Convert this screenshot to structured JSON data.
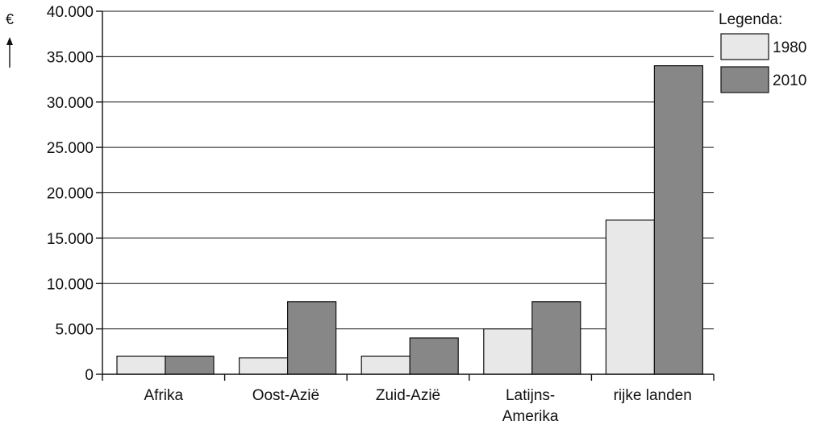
{
  "chart_data": {
    "type": "bar",
    "categories": [
      "Afrika",
      "Oost-Azië",
      "Zuid-Azië",
      "Latijns-\nAmerika",
      "rijke landen"
    ],
    "series": [
      {
        "name": "1980",
        "values": [
          2000,
          1800,
          2000,
          5000,
          17000
        ],
        "color": "#e8e8e8"
      },
      {
        "name": "2010",
        "values": [
          2000,
          8000,
          4000,
          8000,
          34000
        ],
        "color": "#878787"
      }
    ],
    "title": "",
    "xlabel": "",
    "ylabel": "€",
    "ylim": [
      0,
      40000
    ],
    "yticks": [
      0,
      5000,
      10000,
      15000,
      20000,
      25000,
      30000,
      35000,
      40000
    ],
    "ytick_labels": [
      "0",
      "5.000",
      "10.000",
      "15.000",
      "20.000",
      "25.000",
      "30.000",
      "35.000",
      "40.000"
    ],
    "grid": true,
    "legend": {
      "title": "Legenda:",
      "position": "top-right"
    }
  }
}
